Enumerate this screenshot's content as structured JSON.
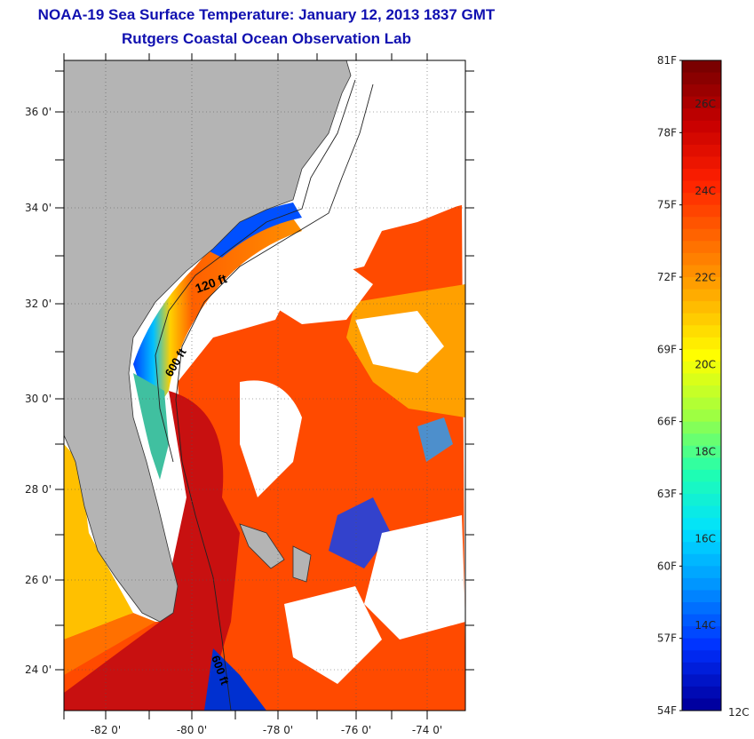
{
  "header": {
    "title": "NOAA-19 Sea Surface Temperature:  January 12, 2013 1837 GMT",
    "subtitle": "Rutgers Coastal Ocean Observation Lab"
  },
  "map": {
    "lat_ticks": [
      "24 0'",
      "26 0'",
      "28 0'",
      "30 0'",
      "32 0'",
      "34 0'",
      "36 0'"
    ],
    "lon_ticks": [
      "-82 0'",
      "-80 0'",
      "-78 0'",
      "-76 0'",
      "-74 0'"
    ],
    "contour_labels": [
      "120 ft",
      "600 ft",
      "600 ft"
    ],
    "colors": {
      "land": "#b4b4b4",
      "cloud": "#ffffff",
      "border": "#000000"
    }
  },
  "colorbar": {
    "f_labels": [
      "81F",
      "78F",
      "75F",
      "72F",
      "69F",
      "66F",
      "63F",
      "60F",
      "57F",
      "54F"
    ],
    "c_labels": [
      "26C",
      "24C",
      "22C",
      "20C",
      "18C",
      "16C",
      "14C",
      "12C"
    ],
    "gradient": [
      "#7a0000",
      "#c80000",
      "#ff2000",
      "#ff6a00",
      "#ffb000",
      "#ffff00",
      "#a0ff40",
      "#20ffb0",
      "#00e0ff",
      "#0090ff",
      "#0030ff",
      "#0000a0"
    ]
  }
}
